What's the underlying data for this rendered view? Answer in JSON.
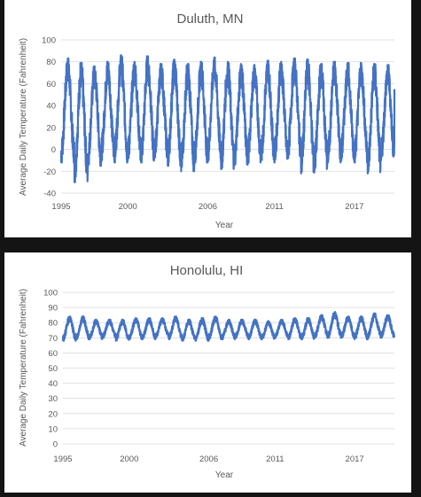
{
  "chart_data": [
    {
      "type": "line",
      "title": "Duluth, MN",
      "xlabel": "Year",
      "ylabel": "Average Daily Temperature (Fahrenheit)",
      "ylim": [
        -40,
        100
      ],
      "y_ticks": [
        "-40",
        "-20",
        "0",
        "20",
        "40",
        "60",
        "80",
        "100"
      ],
      "x_tick_labels": [
        "1995",
        "2000",
        "2006",
        "2011",
        "2017"
      ],
      "x_tick_years": [
        1995,
        2000,
        2006,
        2011,
        2017
      ],
      "xlim": [
        1995,
        2020
      ],
      "grid": true,
      "series": [
        {
          "color": "#4472c4",
          "annual_peaks": [
            83,
            79,
            76,
            80,
            86,
            80,
            85,
            78,
            82,
            78,
            80,
            84,
            80,
            78,
            77,
            81,
            80,
            83,
            82,
            78,
            80,
            79,
            79,
            78,
            77
          ],
          "annual_troughs": [
            -12,
            -30,
            -15,
            -10,
            -12,
            -10,
            -12,
            -8,
            -15,
            -20,
            -12,
            -10,
            -18,
            -14,
            -12,
            -10,
            -12,
            -8,
            -22,
            -18,
            -12,
            -10,
            -12,
            -22,
            -10
          ],
          "end_value": 55
        }
      ]
    },
    {
      "type": "line",
      "title": "Honolulu, HI",
      "xlabel": "Year",
      "ylabel": "Average Daily Temperature (Fahrenheit)",
      "ylim": [
        0,
        100
      ],
      "y_ticks": [
        "0",
        "10",
        "20",
        "30",
        "40",
        "50",
        "60",
        "70",
        "80",
        "90",
        "100"
      ],
      "x_tick_labels": [
        "1995",
        "2000",
        "2006",
        "2011",
        "2017"
      ],
      "x_tick_years": [
        1995,
        2000,
        2006,
        2011,
        2017
      ],
      "xlim": [
        1995,
        2020
      ],
      "grid": true,
      "series": [
        {
          "color": "#4472c4",
          "annual_peaks": [
            84,
            84,
            82,
            82,
            82,
            83,
            83,
            83,
            84,
            82,
            83,
            84,
            82,
            82,
            82,
            81,
            82,
            83,
            83,
            85,
            87,
            84,
            84,
            86,
            85
          ],
          "annual_troughs": [
            68,
            69,
            69,
            70,
            68,
            69,
            69,
            70,
            69,
            68,
            68,
            69,
            69,
            70,
            69,
            69,
            70,
            69,
            69,
            70,
            70,
            70,
            69,
            70,
            70
          ]
        }
      ]
    }
  ]
}
